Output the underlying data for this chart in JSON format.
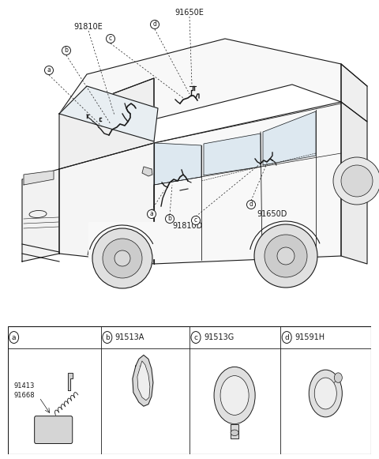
{
  "bg_color": "#ffffff",
  "line_color": "#1a1a1a",
  "gray_fill": "#d8d8d8",
  "light_fill": "#eeeeee",
  "label_fontsize": 7.0,
  "small_fontsize": 6.0,
  "title_label": "91650E",
  "title_label2": "91810E",
  "bottom_label1": "91810D",
  "bottom_label2": "91650D",
  "legend": [
    {
      "letter": "a",
      "number": "",
      "sub": [
        "91413",
        "91668"
      ]
    },
    {
      "letter": "b",
      "number": "91513A",
      "sub": []
    },
    {
      "letter": "c",
      "number": "91513G",
      "sub": []
    },
    {
      "letter": "d",
      "number": "91591H",
      "sub": []
    }
  ],
  "fig_width": 4.8,
  "fig_height": 5.81,
  "dpi": 100
}
